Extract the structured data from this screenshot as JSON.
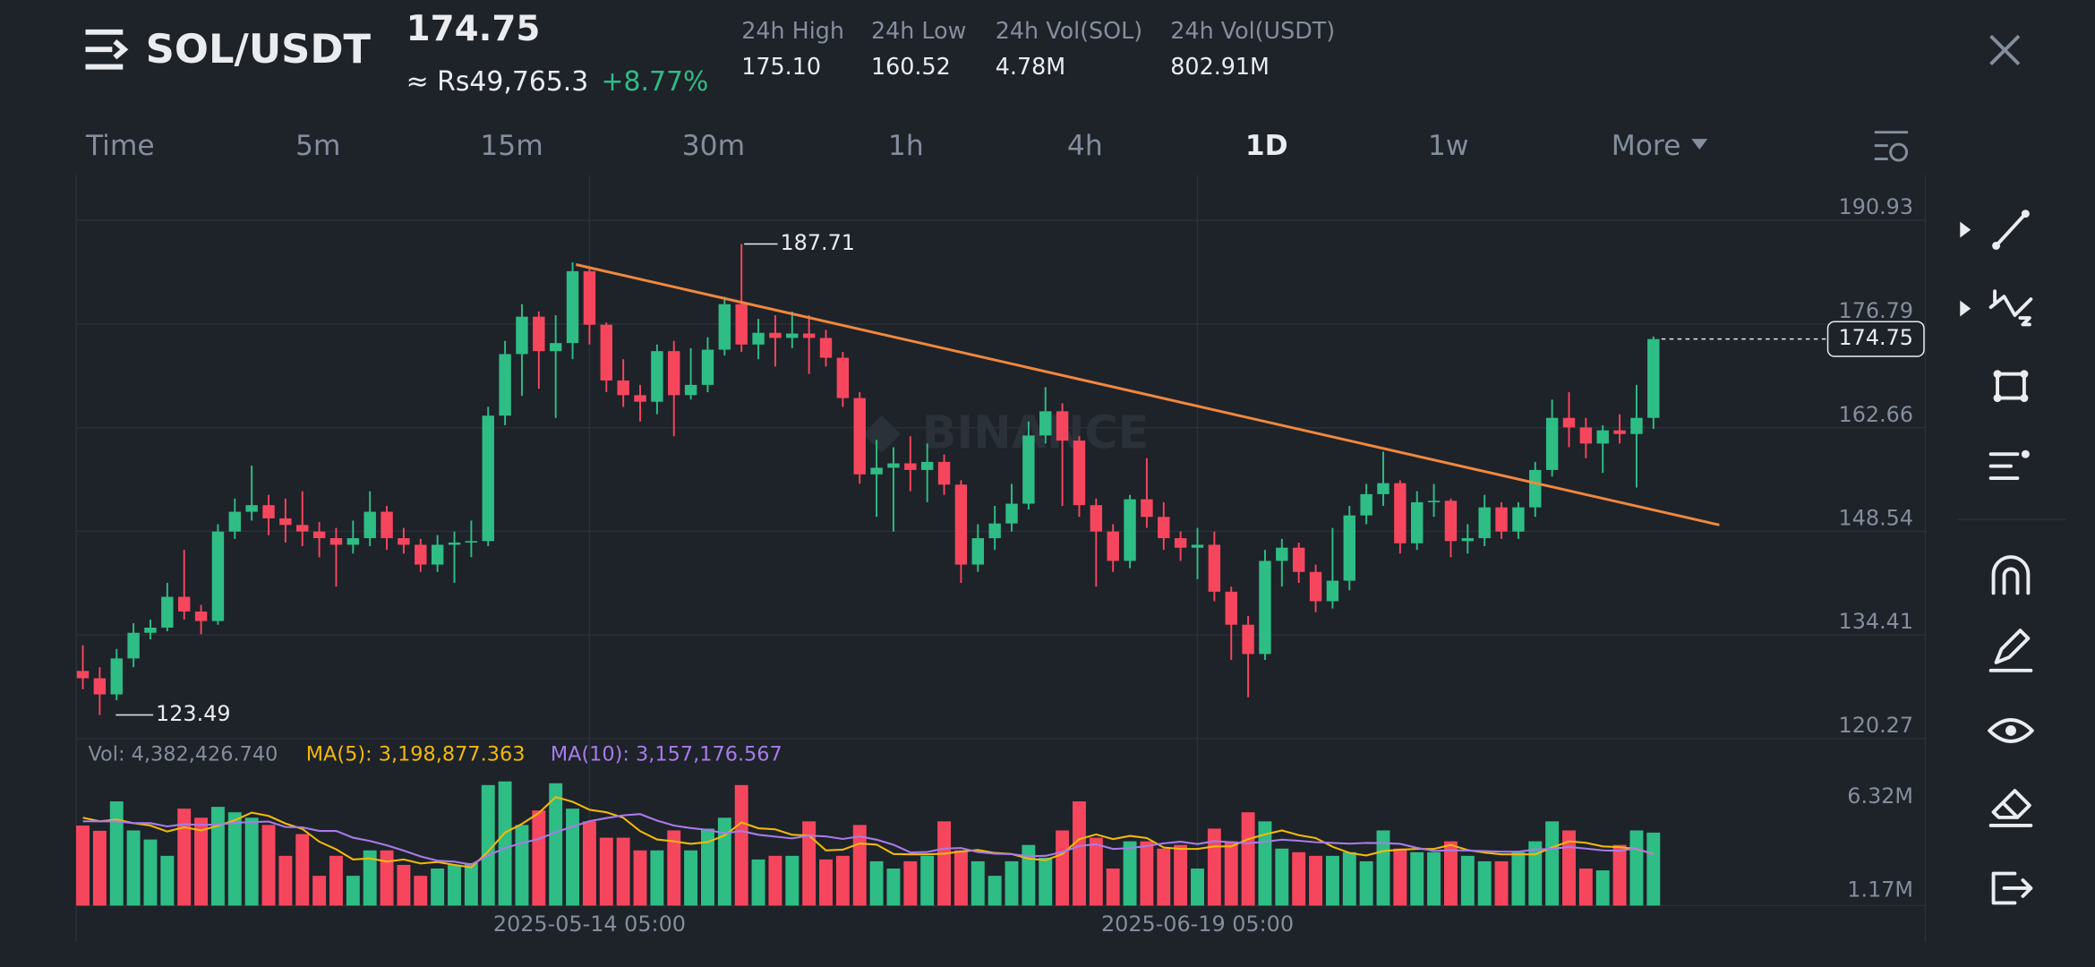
{
  "header": {
    "pair": "SOL/USDT",
    "price": 174.75,
    "fiat_price": "≈ Rs49,765.3",
    "change": "+8.77%",
    "stats": [
      {
        "label": "24h High",
        "value": "175.10"
      },
      {
        "label": "24h Low",
        "value": "160.52"
      },
      {
        "label": "24h Vol(SOL)",
        "value": "4.78M"
      },
      {
        "label": "24h Vol(USDT)",
        "value": "802.91M"
      }
    ],
    "tabs": [
      "Time",
      "5m",
      "15m",
      "30m",
      "1h",
      "4h",
      "1D",
      "1w",
      "More"
    ],
    "active_tab": "1D"
  },
  "watermark": "BINANCE",
  "chart_data": {
    "type": "candlestick",
    "categories": [
      null,
      null,
      null,
      null,
      null,
      null,
      null,
      null,
      null,
      null,
      null,
      null,
      null,
      null,
      null,
      null,
      null,
      null,
      null,
      null,
      null,
      null,
      null,
      null,
      null,
      null,
      null,
      null,
      null,
      null,
      "2025-05-14 05:00",
      null,
      null,
      null,
      null,
      null,
      null,
      null,
      null,
      null,
      null,
      null,
      null,
      null,
      null,
      null,
      null,
      null,
      null,
      null,
      null,
      null,
      null,
      null,
      null,
      null,
      null,
      null,
      null,
      null,
      null,
      null,
      null,
      null,
      null,
      null,
      "2025-06-19 05:00",
      null,
      null,
      null,
      null,
      null,
      null,
      null,
      null,
      null,
      null,
      null,
      null,
      null,
      null,
      null,
      null,
      null,
      null,
      null,
      null,
      null,
      null,
      null,
      null,
      null,
      null,
      null
    ],
    "open": [
      129.5,
      128.5,
      126.3,
      131.2,
      134.7,
      135.4,
      139.6,
      137.6,
      136.3,
      148.5,
      151.2,
      152.1,
      150.3,
      149.4,
      148.5,
      147.6,
      146.7,
      147.6,
      151.2,
      147.6,
      146.7,
      144.0,
      146.7,
      147.0,
      147.2,
      164.3,
      172.7,
      177.8,
      173.1,
      174.2,
      184.0,
      176.7,
      169.1,
      167.1,
      166.2,
      173.1,
      167.1,
      168.5,
      173.3,
      179.5,
      174.0,
      175.6,
      174.9,
      175.5,
      174.9,
      172.2,
      166.7,
      156.3,
      157.2,
      157.8,
      156.9,
      158.0,
      154.9,
      144.0,
      147.6,
      149.6,
      152.3,
      161.6,
      164.9,
      160.9,
      152.1,
      148.5,
      144.5,
      152.9,
      150.5,
      147.6,
      146.3,
      146.7,
      140.3,
      135.8,
      131.8,
      144.5,
      146.3,
      143.0,
      139.0,
      141.8,
      150.7,
      153.6,
      155.1,
      146.9,
      152.5,
      152.7,
      147.2,
      147.6,
      151.8,
      148.5,
      151.8,
      156.9,
      164.0,
      162.7,
      160.5,
      162.3,
      161.8,
      164.0
    ],
    "high": [
      133.0,
      130.0,
      132.5,
      136.0,
      136.5,
      141.5,
      146.0,
      138.5,
      149.5,
      153.0,
      157.5,
      153.5,
      153.0,
      154.0,
      149.8,
      149.0,
      150.0,
      154.0,
      152.0,
      149.0,
      147.5,
      148.0,
      148.5,
      150.0,
      165.5,
      174.5,
      179.5,
      178.5,
      178.0,
      185.2,
      184.5,
      177.0,
      172.0,
      168.5,
      174.0,
      174.5,
      173.5,
      175.0,
      180.5,
      187.71,
      177.5,
      178.0,
      178.5,
      178.0,
      176.0,
      173.0,
      167.5,
      161.0,
      160.0,
      161.5,
      160.5,
      159.0,
      155.5,
      149.5,
      152.0,
      155.0,
      163.5,
      168.2,
      166.0,
      161.5,
      153.0,
      149.5,
      153.5,
      158.5,
      152.5,
      148.5,
      149.0,
      148.5,
      141.0,
      137.0,
      146.0,
      147.5,
      147.0,
      144.0,
      149.0,
      152.0,
      155.0,
      159.4,
      155.5,
      154.0,
      155.0,
      153.0,
      149.5,
      153.5,
      152.5,
      152.5,
      158.0,
      166.5,
      167.5,
      164.0,
      163.0,
      164.5,
      168.5,
      175.1
    ],
    "low": [
      127.0,
      123.49,
      125.5,
      130.0,
      133.8,
      134.9,
      136.5,
      134.5,
      135.8,
      147.5,
      150.0,
      148.0,
      147.0,
      146.5,
      145.0,
      141.0,
      145.5,
      146.5,
      146.0,
      145.5,
      143.0,
      143.0,
      141.5,
      145.0,
      146.5,
      163.0,
      167.0,
      168.0,
      164.0,
      172.0,
      174.0,
      167.5,
      165.5,
      163.5,
      164.5,
      161.5,
      166.5,
      167.5,
      172.5,
      173.0,
      172.0,
      171.0,
      173.5,
      170.0,
      171.0,
      165.5,
      155.0,
      150.5,
      148.5,
      154.0,
      152.5,
      153.5,
      141.5,
      143.0,
      146.0,
      148.5,
      151.5,
      160.5,
      152.0,
      150.5,
      141.0,
      143.0,
      143.5,
      149.0,
      146.0,
      144.5,
      142.0,
      139.0,
      131.0,
      125.9,
      131.0,
      141.0,
      141.5,
      137.5,
      138.0,
      140.5,
      149.5,
      152.0,
      145.5,
      146.0,
      150.5,
      145.0,
      145.5,
      146.5,
      147.5,
      147.5,
      150.5,
      156.0,
      160.0,
      158.5,
      156.5,
      160.5,
      154.5,
      162.5
    ],
    "close": [
      128.5,
      126.3,
      131.2,
      134.7,
      135.4,
      139.6,
      137.6,
      136.3,
      148.5,
      151.2,
      152.1,
      150.3,
      149.4,
      148.5,
      147.6,
      146.7,
      147.6,
      151.2,
      147.6,
      146.7,
      144.0,
      146.7,
      147.0,
      147.2,
      164.3,
      172.7,
      177.8,
      173.1,
      174.2,
      184.0,
      176.7,
      169.1,
      167.1,
      166.2,
      173.1,
      167.1,
      168.5,
      173.3,
      179.5,
      174.0,
      175.6,
      174.9,
      175.5,
      174.9,
      172.2,
      166.7,
      156.3,
      157.2,
      157.8,
      156.9,
      158.0,
      154.9,
      144.0,
      147.6,
      149.6,
      152.3,
      161.6,
      164.9,
      160.9,
      152.1,
      148.5,
      144.5,
      152.9,
      150.5,
      147.6,
      146.3,
      146.7,
      140.3,
      135.8,
      131.8,
      144.5,
      146.3,
      143.0,
      139.0,
      141.8,
      150.7,
      153.6,
      155.1,
      146.9,
      152.5,
      152.7,
      147.2,
      147.6,
      151.8,
      148.5,
      151.8,
      156.9,
      164.0,
      162.7,
      160.5,
      162.3,
      161.8,
      164.0,
      174.75
    ],
    "ylim": [
      120.27,
      197.12
    ],
    "yticks": [
      120.27,
      134.41,
      148.54,
      162.66,
      176.79,
      190.93
    ],
    "grid": true,
    "up_color": "#2ebd85",
    "down_color": "#f6465d",
    "trendline": {
      "color": "#f0883e",
      "start": [
        29.2,
        184.9
      ],
      "end": [
        96.9,
        149.4
      ]
    },
    "volume": {
      "label": "Vol: 4,382,426.740",
      "values": [
        4.77,
        4.48,
        6.1,
        4.5,
        4.0,
        3.1,
        5.7,
        5.2,
        5.8,
        5.5,
        5.2,
        4.8,
        3.1,
        4.3,
        2.0,
        3.1,
        2.0,
        3.4,
        3.4,
        2.6,
        2.0,
        2.4,
        2.6,
        2.7,
        7.0,
        7.2,
        4.8,
        5.6,
        7.1,
        5.7,
        5.0,
        4.1,
        4.1,
        3.4,
        3.4,
        4.5,
        3.4,
        4.6,
        5.2,
        7.0,
        2.9,
        3.1,
        3.1,
        5.0,
        2.9,
        3.1,
        4.8,
        2.8,
        2.4,
        2.8,
        3.1,
        5.0,
        3.4,
        2.8,
        2.0,
        2.8,
        3.7,
        3.0,
        4.5,
        6.1,
        4.1,
        2.4,
        3.9,
        3.9,
        3.5,
        3.7,
        2.4,
        4.6,
        3.9,
        5.5,
        5.0,
        3.5,
        3.3,
        3.1,
        3.1,
        3.3,
        2.8,
        4.5,
        3.5,
        3.3,
        3.3,
        3.9,
        3.1,
        2.8,
        2.8,
        3.3,
        3.9,
        5.0,
        4.5,
        2.4,
        2.3,
        3.7,
        4.5,
        4.38
      ],
      "ylim": [
        0.36,
        7.94
      ],
      "yticks": [
        {
          "value": 6.32,
          "label": "6.32M"
        },
        {
          "value": 1.17,
          "label": "1.17M"
        }
      ],
      "series": [
        {
          "name": "MA(5): 3,198,877.363",
          "color": "#f0b90b",
          "values": [
            5.2,
            5.0,
            5.1,
            4.9,
            4.77,
            4.44,
            4.68,
            4.5,
            4.76,
            5.06,
            5.48,
            5.3,
            4.88,
            4.58,
            3.88,
            3.46,
            2.9,
            2.96,
            2.78,
            2.9,
            2.68,
            2.76,
            2.6,
            2.46,
            3.34,
            4.38,
            4.86,
            5.46,
            6.34,
            6.08,
            5.64,
            5.5,
            5.2,
            4.46,
            4.0,
            3.9,
            3.76,
            3.86,
            4.22,
            4.94,
            4.62,
            4.56,
            4.26,
            4.22,
            3.4,
            3.44,
            3.78,
            3.72,
            3.2,
            3.18,
            3.18,
            3.22,
            3.34,
            3.42,
            3.26,
            3.2,
            2.94,
            2.86,
            3.2,
            4.02,
            4.28,
            4.02,
            4.2,
            4.08,
            3.56,
            3.48,
            3.48,
            3.62,
            3.62,
            4.02,
            4.28,
            4.5,
            4.24,
            4.08,
            3.6,
            3.26,
            3.12,
            3.36,
            3.44,
            3.48,
            3.48,
            3.7,
            3.42,
            3.28,
            3.18,
            3.18,
            3.18,
            3.56,
            3.9,
            3.82,
            3.62,
            3.58,
            3.48,
            3.2
          ]
        },
        {
          "name": "MA(10): 3,157,176.567",
          "color": "#a77ce8",
          "values": [
            5.0,
            5.0,
            5.0,
            4.9,
            4.9,
            4.72,
            4.84,
            4.8,
            4.83,
            4.92,
            4.96,
            4.99,
            4.69,
            4.67,
            4.47,
            4.47,
            4.1,
            3.92,
            3.68,
            3.39,
            3.07,
            2.83,
            2.78,
            2.62,
            3.12,
            3.53,
            3.81,
            4.03,
            4.4,
            4.71,
            5.01,
            5.18,
            5.33,
            5.4,
            5.04,
            4.77,
            4.63,
            4.53,
            4.34,
            4.47,
            4.26,
            4.16,
            4.06,
            4.22,
            4.17,
            4.03,
            4.17,
            3.99,
            3.71,
            3.29,
            3.31,
            3.5,
            3.53,
            3.31,
            3.22,
            3.19,
            3.08,
            3.1,
            3.31,
            3.64,
            3.74,
            3.48,
            3.53,
            3.64,
            3.79,
            3.88,
            3.75,
            3.91,
            3.85,
            3.79,
            3.88,
            3.99,
            3.93,
            3.85,
            3.81,
            3.77,
            3.81,
            3.8,
            3.76,
            3.54,
            3.37,
            3.41,
            3.39,
            3.36,
            3.33,
            3.33,
            3.44,
            3.49,
            3.59,
            3.5,
            3.4,
            3.38,
            3.52,
            3.16
          ]
        }
      ]
    }
  }
}
